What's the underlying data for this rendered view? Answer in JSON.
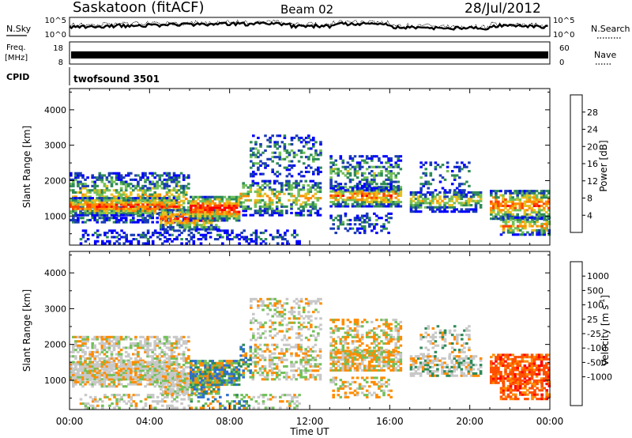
{
  "header": {
    "title": "Saskatoon (fitACF)",
    "beam": "Beam 02",
    "date": "28/Jul/2012"
  },
  "top_panels": {
    "nsky_label": "N.Sky",
    "nsky_ticks": [
      "10^5",
      "10^0"
    ],
    "nsearch_label": "N.Search",
    "nsearch_ticks": [
      "10^5",
      "10^0"
    ],
    "freq_label_1": "Freq.",
    "freq_label_2": "[MHz]",
    "freq_ticks": [
      "18",
      "8"
    ],
    "nave_label": "Nave",
    "nave_ticks": [
      "60",
      "0"
    ],
    "cpid_label": "CPID",
    "cpid_value": "twofsound 3501"
  },
  "chart_data": [
    {
      "type": "heatmap",
      "name": "power",
      "ylabel": "Slant Range [km]",
      "xlabel": "Time UT",
      "x_ticks": [
        "00:00",
        "04:00",
        "08:00",
        "12:00",
        "16:00",
        "20:00",
        "00:00"
      ],
      "x_range_hours": [
        0,
        24
      ],
      "y_ticks": [
        1000,
        2000,
        3000,
        4000
      ],
      "ylim": [
        180,
        4600
      ],
      "colorbar_label": "Power [dB]",
      "colorbar_ticks": [
        "28",
        "24",
        "20",
        "16",
        "12",
        "8",
        "4"
      ],
      "colorbar_colors": [
        "#0000ff",
        "#1a3cb4",
        "#2e8b57",
        "#72c05a",
        "#e6c020",
        "#ff8c00",
        "#ff4500",
        "#ff0000"
      ]
    },
    {
      "type": "heatmap",
      "name": "velocity",
      "ylabel": "Slant Range [km]",
      "xlabel": "Time UT",
      "x_ticks": [
        "00:00",
        "04:00",
        "08:00",
        "12:00",
        "16:00",
        "20:00",
        "00:00"
      ],
      "x_range_hours": [
        0,
        24
      ],
      "y_ticks": [
        1000,
        2000,
        3000,
        4000
      ],
      "ylim": [
        180,
        4600
      ],
      "colorbar_label": "Velocity [m s^-1]",
      "colorbar_ticks": [
        "1000",
        "500",
        "100",
        "25",
        "-25",
        "-100",
        "-500",
        "-1000"
      ],
      "colorbar_colors": [
        "#1a3cb4",
        "#2e6fd0",
        "#2e8b57",
        "#72c05a",
        "#c8c8c8",
        "#c8c8c8",
        "#ffb347",
        "#ff8c00",
        "#ff5000",
        "#ff0000"
      ]
    }
  ]
}
